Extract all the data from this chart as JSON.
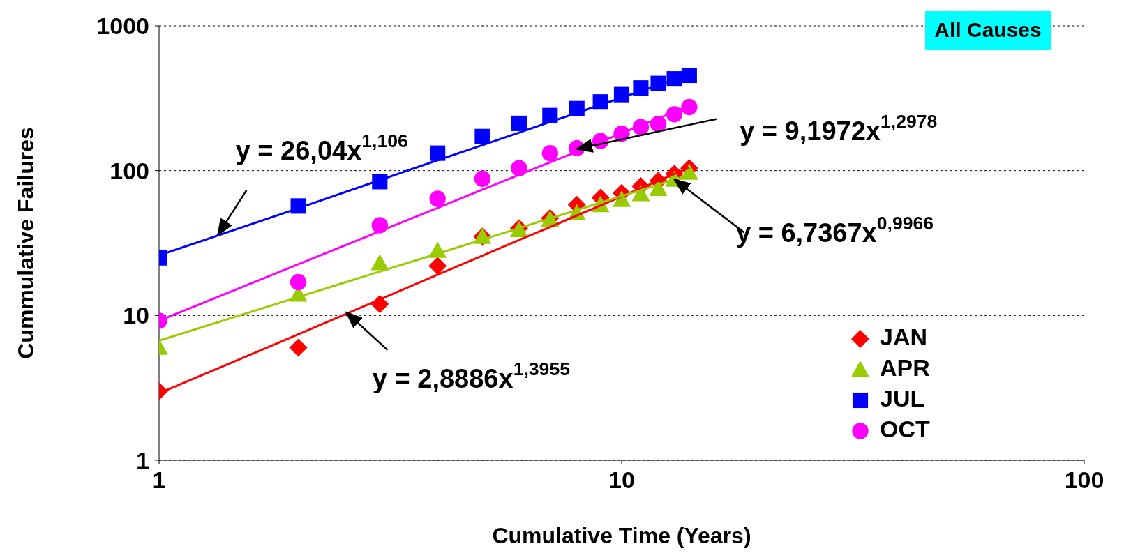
{
  "chart_data": {
    "type": "scatter",
    "title": "All Causes",
    "xlabel": "Cumulative Time (Years)",
    "ylabel": "Cummulative Failures",
    "log": "xy",
    "xlim": [
      1,
      100
    ],
    "xticks": [
      1,
      10,
      100
    ],
    "ylim": [
      1,
      1000
    ],
    "yticks": [
      1,
      10,
      100,
      1000
    ],
    "grid": "y",
    "legend": "bottom right",
    "x": [
      1,
      2,
      3,
      4,
      5,
      6,
      7,
      8,
      9,
      10,
      11,
      12,
      13,
      14
    ],
    "series": [
      {
        "name": "JAN",
        "color": "#ff0000",
        "marker": "diamond",
        "values": [
          3,
          6,
          12,
          22,
          35,
          40,
          47,
          58,
          65,
          70,
          78,
          85,
          95,
          104
        ]
      },
      {
        "name": "APR",
        "color": "#99cc00",
        "marker": "triangle",
        "values": [
          6,
          14,
          23,
          28,
          35,
          39,
          46,
          51,
          58,
          63,
          69,
          75,
          87,
          97
        ]
      },
      {
        "name": "JUL",
        "color": "#0000ff",
        "marker": "square",
        "values": [
          25,
          57,
          84,
          132,
          172,
          212,
          240,
          268,
          298,
          335,
          372,
          400,
          430,
          455
        ]
      },
      {
        "name": "OCT",
        "color": "#ff00ff",
        "marker": "circle",
        "values": [
          9.2,
          17,
          42,
          64,
          88,
          104,
          132,
          143,
          160,
          180,
          200,
          210,
          245,
          275
        ]
      },
      {
        "type": "line",
        "color": "#ff0000",
        "marker": "none",
        "values": [
          2.9,
          7.4,
          12.9,
          19.1,
          25.9,
          33.2,
          40.8,
          49,
          57.5,
          66.4,
          75.6,
          85,
          94.8,
          105
        ]
      },
      {
        "type": "line",
        "color": "#99cc00",
        "marker": "none",
        "values": [
          6.7,
          13.4,
          20.1,
          26.7,
          33.4,
          40.1,
          46.8,
          53.4,
          60.1,
          66.7,
          73.4,
          80,
          86.7,
          93
        ]
      },
      {
        "type": "line",
        "color": "#0000ff",
        "marker": "none",
        "values": [
          26,
          55,
          86,
          118,
          150,
          183,
          217,
          250,
          285,
          319,
          354,
          389,
          424,
          460
        ]
      },
      {
        "type": "line",
        "color": "#ff00ff",
        "marker": "none",
        "values": [
          9.2,
          22.6,
          38.1,
          55.3,
          73.9,
          93.5,
          114,
          135,
          158,
          181,
          205,
          229,
          255,
          280
        ]
      }
    ],
    "annotations": [
      {
        "text": "y = 26,04x$^{1,106}$",
        "x": 1.34,
        "y": 36
      },
      {
        "text": "y = 9,1972x$^{1,2978}$",
        "x": 8,
        "y": 141
      },
      {
        "text": "y = 6,7367x$^{0,9966}$",
        "x": 13,
        "y": 87
      },
      {
        "text": "y = 2,8886x$^{1,3955}$",
        "x": 2.54,
        "y": 10.5
      }
    ]
  }
}
